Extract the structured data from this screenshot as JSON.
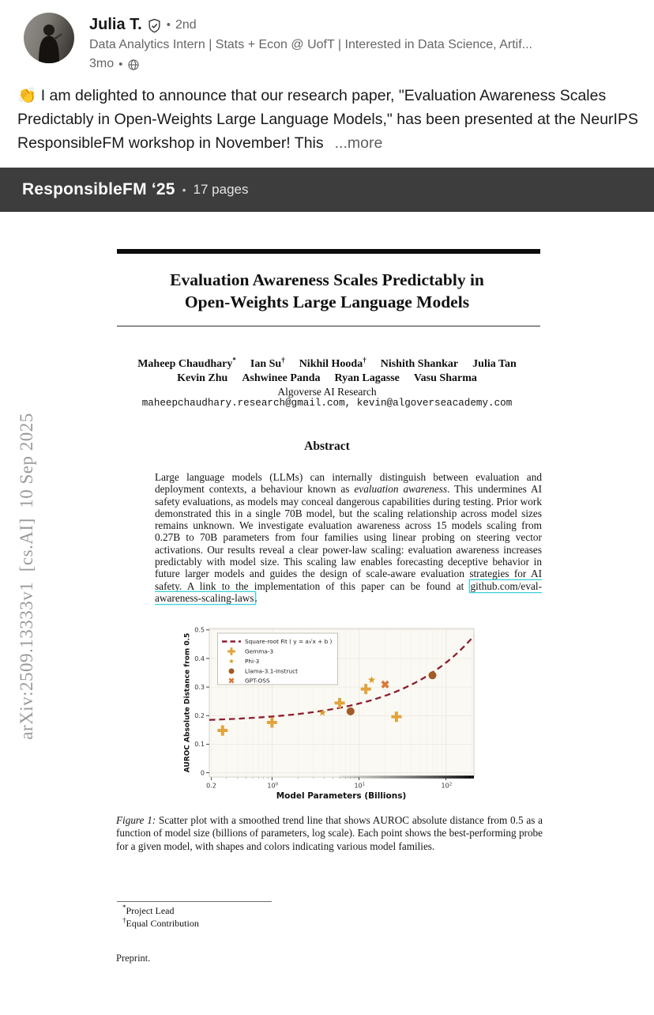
{
  "post": {
    "author": {
      "name": "Julia T.",
      "degree": "2nd",
      "meta_separator": "•",
      "headline": "Data Analytics Intern | Stats + Econ @ UofT | Interested in Data Science, Artif...",
      "time": "3mo"
    },
    "body": "👏 I am delighted to announce that our research paper, \"Evaluation Awareness Scales Predictably in Open-Weights Large Language Models,\" has been presented at the NeurIPS ResponsibleFM workshop in November! This",
    "more_label": "...more"
  },
  "document_banner": {
    "title": "ResponsibleFM ‘25",
    "separator": "•",
    "pages": "17 pages"
  },
  "paper": {
    "arxiv_sidebar": "arXiv:2509.13333v1  [cs.AI]  10 Sep 2025",
    "title": [
      "Evaluation Awareness Scales Predictably in",
      "Open-Weights Large Language Models"
    ],
    "authors_line1": [
      {
        "name": "Maheep Chaudhary",
        "sup": "*"
      },
      {
        "name": "Ian Su",
        "sup": "†"
      },
      {
        "name": "Nikhil Hooda",
        "sup": "†"
      },
      {
        "name": "Nishith Shankar",
        "sup": ""
      },
      {
        "name": "Julia Tan",
        "sup": ""
      }
    ],
    "authors_line2": [
      {
        "name": "Kevin Zhu",
        "sup": ""
      },
      {
        "name": "Ashwinee Panda",
        "sup": ""
      },
      {
        "name": "Ryan Lagasse",
        "sup": ""
      },
      {
        "name": "Vasu Sharma",
        "sup": ""
      }
    ],
    "affiliation": "Algoverse AI Research",
    "emails": "maheepchaudhary.research@gmail.com, kevin@algoverseacademy.com",
    "abstract_heading": "Abstract",
    "abstract_segments": [
      {
        "t": "Large language models (LLMs) can internally distinguish between evaluation and deployment contexts, a behaviour known as "
      },
      {
        "t": "evaluation awareness",
        "style": "italic"
      },
      {
        "t": ". This undermines AI safety evaluations, as models may conceal dangerous capabilities during testing. Prior work demonstrated this in a single 70B model, but the scaling relationship across model sizes remains unknown. We investigate evaluation awareness across 15 models scaling from 0.27B to 70B parameters from four families using linear probing on steering vector activations. Our results reveal a clear power-law scaling: evaluation awareness increases predictably with model size. This scaling law enables forecasting deceptive behavior in future larger models and guides the design of scale-aware evaluation strategies for AI safety. A link to the implementation of this paper can be found at "
      },
      {
        "t": "github.com/eval-awareness-scaling-laws",
        "style": "link"
      },
      {
        "t": "."
      }
    ],
    "figure_caption_label": "Figure 1:",
    "figure_caption": "Scatter plot with a smoothed trend line that shows AUROC absolute distance from 0.5 as a function of model size (billions of parameters, log scale). Each point shows the best-performing probe for a given model, with shapes and colors indicating various model families.",
    "footnotes": [
      {
        "sup": "*",
        "text": "Project Lead"
      },
      {
        "sup": "†",
        "text": "Equal Contribution"
      }
    ],
    "preprint": "Preprint."
  },
  "chart_data": {
    "type": "scatter",
    "xlabel": "Model Parameters (Billions)",
    "ylabel": "AUROC Absolute Distance from 0.5",
    "x_scale": "log",
    "xlim": [
      0.19,
      210
    ],
    "ylim": [
      -0.015,
      0.505
    ],
    "x_ticks": [
      {
        "value": 0.2,
        "label": "0.2",
        "exp": ""
      },
      {
        "value": 1,
        "label": "10",
        "exp": "0"
      },
      {
        "value": 10,
        "label": "10",
        "exp": "1"
      },
      {
        "value": 100,
        "label": "10",
        "exp": "2"
      }
    ],
    "y_ticks": [
      0,
      0.1,
      0.2,
      0.3,
      0.4,
      0.5
    ],
    "grid": true,
    "legend_position": "upper left",
    "fit_line": {
      "label": "Square-root Fit ( y = a√x + b )",
      "a": 0.0209,
      "b": 0.176,
      "color": "#8d1e2e",
      "dash": true
    },
    "series": [
      {
        "name": "Gemma-3",
        "marker": "plus",
        "color": "#e2a33c",
        "points": [
          [
            0.27,
            0.148
          ],
          [
            1.0,
            0.176
          ],
          [
            6.0,
            0.244
          ],
          [
            12,
            0.293
          ],
          [
            27,
            0.196
          ]
        ]
      },
      {
        "name": "Phi-3",
        "marker": "star",
        "color": "#d79c28",
        "points": [
          [
            3.8,
            0.21
          ],
          [
            14,
            0.325
          ]
        ]
      },
      {
        "name": "Llama-3.1-Instruct",
        "marker": "circle",
        "color": "#a15a28",
        "points": [
          [
            8,
            0.215
          ],
          [
            70,
            0.341
          ]
        ]
      },
      {
        "name": "GPT-OSS",
        "marker": "x",
        "color": "#d8793a",
        "points": [
          [
            20,
            0.309
          ]
        ]
      }
    ]
  },
  "colors": {
    "banner_bg": "#3d3d3d",
    "link_box": "#3fd2da",
    "fit": "#8d1e2e"
  }
}
